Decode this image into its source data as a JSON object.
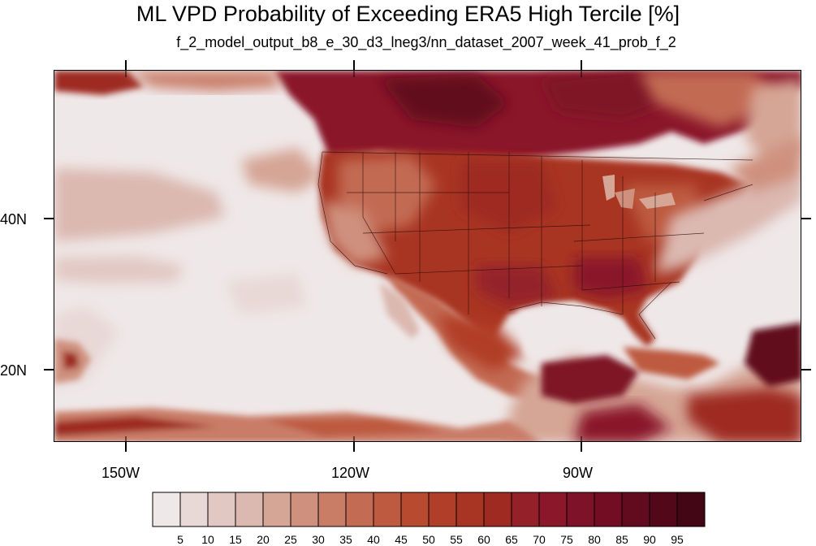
{
  "title": "ML VPD Probability of Exceeding ERA5 High Tercile [%]",
  "subtitle": "f_2_model_output_b8_e_30_d3_lneg3/nn_dataset_2007_week_41_prob_f_2",
  "axes": {
    "lon_labels": [
      "150W",
      "120W",
      "90W"
    ],
    "lat_labels": [
      "40N",
      "20N"
    ]
  },
  "colorbar": {
    "labels": [
      "5",
      "10",
      "15",
      "20",
      "25",
      "30",
      "35",
      "40",
      "45",
      "50",
      "55",
      "60",
      "65",
      "70",
      "75",
      "80",
      "85",
      "90",
      "95"
    ],
    "colors": [
      "#efe8e8",
      "#e8d8d6",
      "#e2c8c3",
      "#dbb8b0",
      "#d5a595",
      "#cf917e",
      "#c97d67",
      "#c36b53",
      "#bd5a40",
      "#b84a30",
      "#b13e28",
      "#a83424",
      "#9e2a22",
      "#94202a",
      "#8a182a",
      "#7e1228",
      "#720d24",
      "#620a1e",
      "#520818",
      "#420614"
    ]
  }
}
